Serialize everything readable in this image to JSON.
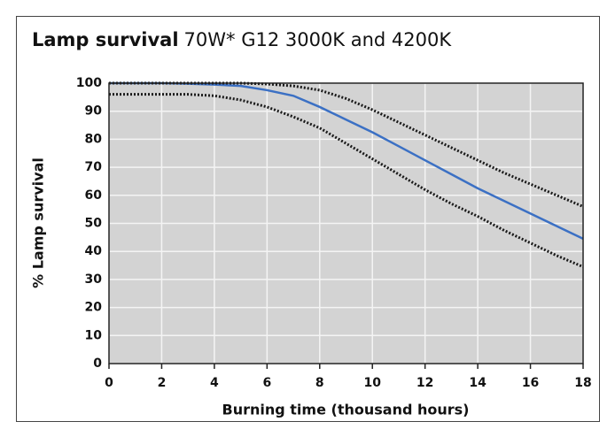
{
  "chart_data": {
    "type": "line",
    "title": "Lamp survival",
    "subtitle": "70W* G12 3000K and 4200K",
    "x_label": "Burning time (thousand hours)",
    "y_label": "% Lamp survival",
    "x": [
      0,
      1,
      2,
      3,
      4,
      5,
      6,
      7,
      8,
      9,
      10,
      11,
      12,
      13,
      14,
      15,
      16,
      17,
      18
    ],
    "series": [
      {
        "color": "#3b70c4",
        "style": "solid",
        "values": [
          100,
          100,
          100,
          99.8,
          99.5,
          99,
          97.5,
          95.5,
          91.5,
          87,
          82.5,
          77.5,
          72.5,
          67.5,
          62.5,
          58,
          53.5,
          49,
          44.5
        ]
      },
      {
        "color": "#1a1a1a",
        "style": "dotted",
        "values": [
          100,
          100,
          100,
          100,
          100,
          100,
          99.7,
          99,
          97.5,
          94.5,
          90.5,
          86,
          81.5,
          77,
          72.5,
          68,
          64,
          60,
          56
        ]
      },
      {
        "color": "#1a1a1a",
        "style": "dotted",
        "values": [
          96,
          96,
          96,
          96,
          95.5,
          94,
          91.5,
          88,
          84,
          78.5,
          73,
          67.5,
          62,
          57,
          52.5,
          47.5,
          43,
          38.5,
          34.5
        ]
      }
    ],
    "xlim": [
      0,
      18
    ],
    "xticks": [
      0,
      2,
      4,
      6,
      8,
      10,
      12,
      14,
      16,
      18
    ],
    "ylim": [
      0,
      100
    ],
    "yticks": [
      0,
      10,
      20,
      30,
      40,
      50,
      60,
      70,
      80,
      90,
      100
    ],
    "grid": true
  }
}
